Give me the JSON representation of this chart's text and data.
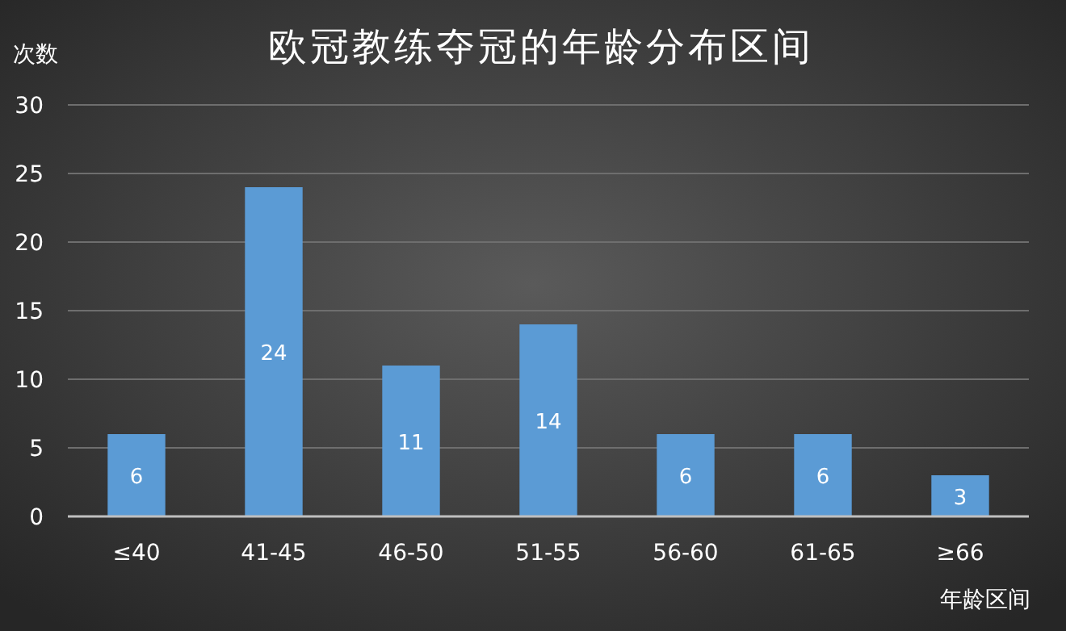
{
  "chart_data": {
    "type": "bar",
    "title": "欧冠教练夺冠的年龄分布区间",
    "ylabel": "次数",
    "xlabel": "年龄区间",
    "categories": [
      "≤40",
      "41-45",
      "46-50",
      "51-55",
      "56-60",
      "61-65",
      "≥66"
    ],
    "values": [
      6,
      24,
      11,
      14,
      6,
      6,
      3
    ],
    "color": "#5b9bd5",
    "ylim": [
      0,
      30
    ],
    "yticks": [
      0,
      5,
      10,
      15,
      20,
      25,
      30
    ],
    "grid": "y",
    "data_labels": true
  }
}
